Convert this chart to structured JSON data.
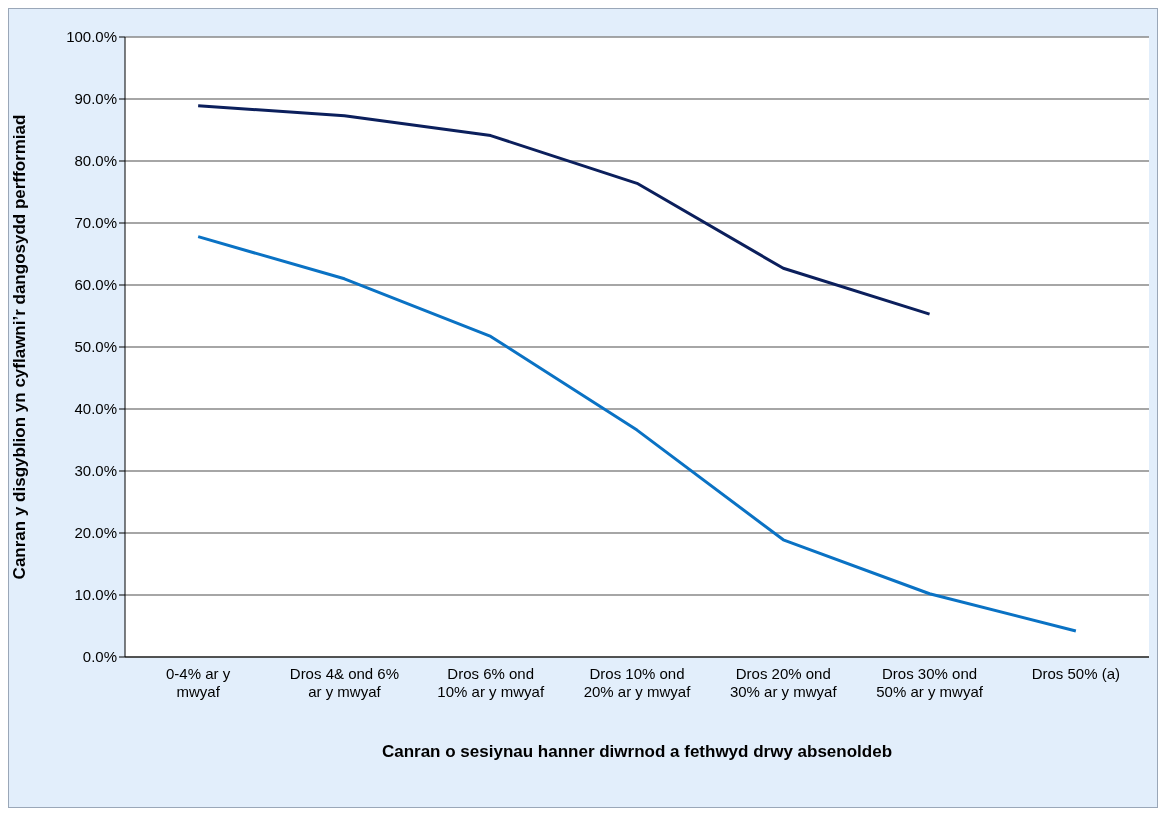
{
  "chart_data": {
    "type": "line",
    "xlabel": "Canran o sesiynau hanner diwrnod a fethwyd drwy absenoldeb",
    "ylabel": "Canran y disgyblion yn cyflawni’r dangosydd perfformiad",
    "categories": [
      "0-4% ar y mwyaf",
      "Dros 4& ond 6% ar y mwyaf",
      "Dros 6% ond 10% ar y mwyaf",
      "Dros 10% ond 20% ar y mwyaf",
      "Dros 20% ond 30% ar y mwyaf",
      "Dros 30% ond 50% ar y mwyaf",
      "Dros 50% (a)"
    ],
    "series": [
      {
        "color": "#0b1f5c",
        "values": [
          88.9,
          87.3,
          84.1,
          76.4,
          62.7,
          55.3,
          null
        ]
      },
      {
        "color": "#0a72c4",
        "values": [
          67.8,
          61.0,
          51.7,
          36.6,
          18.9,
          10.2,
          4.2
        ]
      }
    ],
    "ylim": [
      0,
      100
    ],
    "yticks": [
      {
        "value": 0,
        "label": "0.0%"
      },
      {
        "value": 10,
        "label": "10.0%"
      },
      {
        "value": 20,
        "label": "20.0%"
      },
      {
        "value": 30,
        "label": "30.0%"
      },
      {
        "value": 40,
        "label": "40.0%"
      },
      {
        "value": 50,
        "label": "50.0%"
      },
      {
        "value": 60,
        "label": "60.0%"
      },
      {
        "value": 70,
        "label": "70.0%"
      },
      {
        "value": 80,
        "label": "80.0%"
      },
      {
        "value": 90,
        "label": "90.0%"
      },
      {
        "value": 100,
        "label": "100.0%"
      }
    ],
    "grid": "y",
    "legend": false,
    "marker": "none",
    "line_style": "solid"
  }
}
